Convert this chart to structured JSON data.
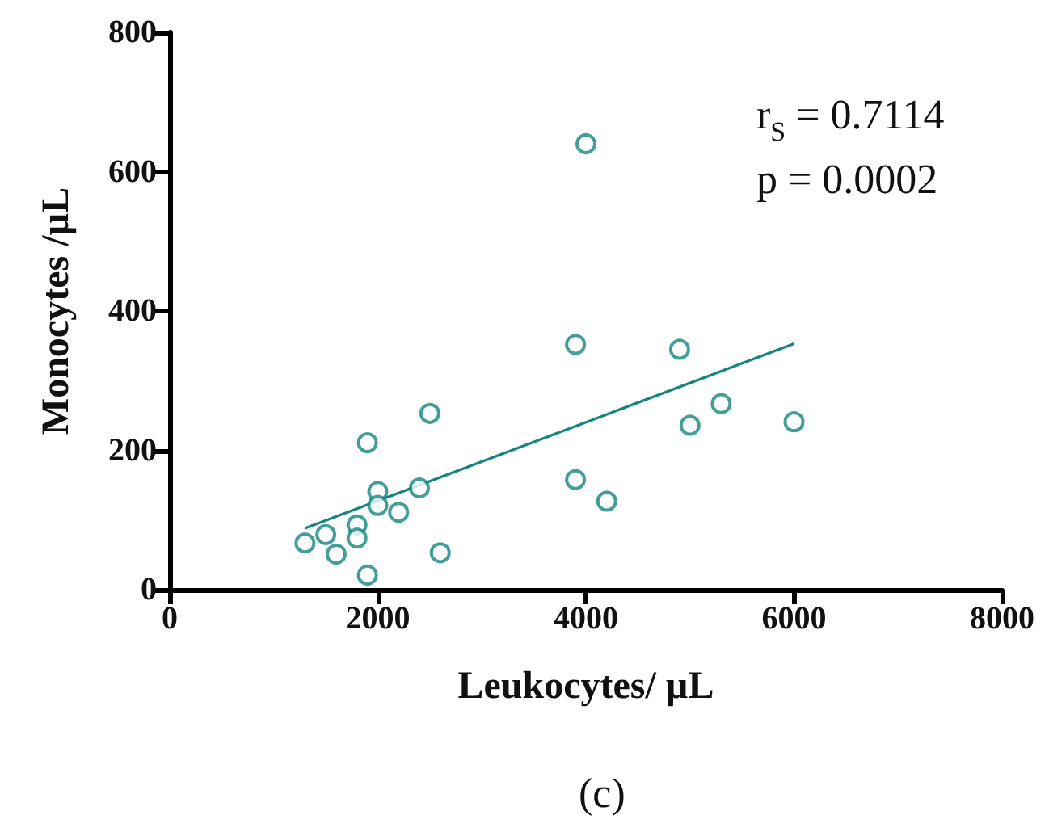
{
  "chart_data": {
    "type": "scatter",
    "xlabel": "Leukocytes/ µL",
    "ylabel": "Monocytes /µL",
    "annotations": [
      "r$_{S}$ = 0.7114",
      "p = 0.0002",
      "(c)"
    ],
    "xlim": [
      0,
      8000
    ],
    "xticks": [
      0,
      2000,
      4000,
      6000,
      8000
    ],
    "ylim": [
      0,
      800
    ],
    "yticks": [
      0,
      200,
      400,
      600,
      800
    ],
    "grid": false,
    "series": [
      {
        "type": "scatter",
        "marker": "circle",
        "color": "#14857f",
        "x": [
          1300,
          1500,
          1600,
          1800,
          1800,
          1900,
          1900,
          2000,
          2000,
          2200,
          2400,
          2500,
          2600,
          3900,
          3900,
          4000,
          4200,
          4900,
          5000,
          5300,
          6000
        ],
        "values": [
          67,
          79,
          51,
          93,
          74,
          211,
          21,
          141,
          121,
          111,
          146,
          253,
          53,
          352,
          158,
          640,
          127,
          345,
          236,
          267,
          241
        ]
      },
      {
        "type": "line",
        "marker": "none",
        "color": "#14857f",
        "x": [
          1300,
          6000
        ],
        "values": [
          88,
          353
        ]
      }
    ]
  }
}
